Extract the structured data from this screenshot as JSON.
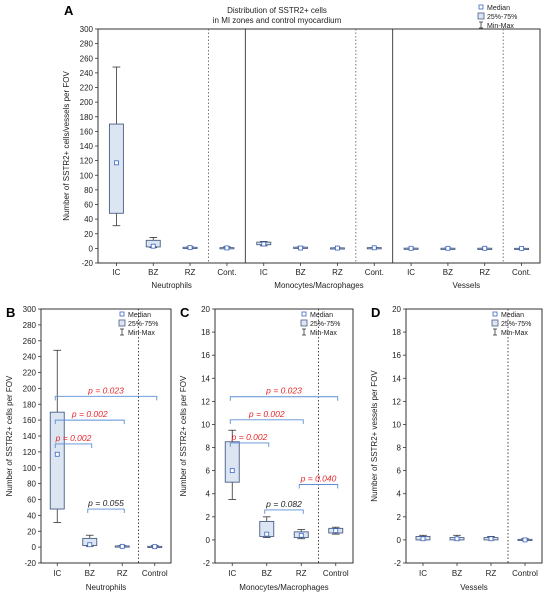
{
  "chart_data": [
    {
      "panel": "A",
      "type": "box",
      "title": "Distribution of SSTR2+ cells\nin MI zones and control myocardium",
      "ylabel": "Number of SSTR2+ cells/vessels per FOV",
      "ylim": [
        -20,
        300
      ],
      "yticks": [
        -20,
        0,
        20,
        40,
        60,
        80,
        100,
        120,
        140,
        160,
        180,
        200,
        220,
        240,
        260,
        280,
        300
      ],
      "legend": [
        "Median",
        "25%-75%",
        "Min-Max"
      ],
      "groups": [
        {
          "name": "Neutrophils",
          "categories": [
            "IC",
            "BZ",
            "RZ",
            "Cont."
          ],
          "boxes": [
            {
              "min": 31,
              "q1": 48,
              "median": 117,
              "q3": 170,
              "max": 248
            },
            {
              "min": 1,
              "q1": 2,
              "median": 3,
              "q3": 11,
              "max": 15
            },
            {
              "min": 0,
              "q1": 0,
              "median": 1,
              "q3": 1.5,
              "max": 2
            },
            {
              "min": 0,
              "q1": 0.2,
              "median": 0.6,
              "q3": 1,
              "max": 2
            }
          ]
        },
        {
          "name": "Monocytes/Macrophages",
          "categories": [
            "IC",
            "BZ",
            "RZ",
            "Cont."
          ],
          "boxes": [
            {
              "min": 3.5,
              "q1": 5,
              "median": 6,
              "q3": 8.5,
              "max": 9.5
            },
            {
              "min": 0.2,
              "q1": 0.3,
              "median": 0.5,
              "q3": 1.6,
              "max": 2
            },
            {
              "min": 0.1,
              "q1": 0.2,
              "median": 0.4,
              "q3": 0.7,
              "max": 0.9
            },
            {
              "min": 0.5,
              "q1": 0.6,
              "median": 0.8,
              "q3": 1.0,
              "max": 1.1
            }
          ]
        },
        {
          "name": "Vessels",
          "categories": [
            "IC",
            "BZ",
            "RZ",
            "Cont."
          ],
          "boxes": [
            {
              "min": 0,
              "q1": 0,
              "median": 0.1,
              "q3": 0.3,
              "max": 0.4
            },
            {
              "min": 0,
              "q1": 0,
              "median": 0.1,
              "q3": 0.2,
              "max": 0.4
            },
            {
              "min": 0,
              "q1": 0,
              "median": 0.1,
              "q3": 0.2,
              "max": 0.3
            },
            {
              "min": 0,
              "q1": 0,
              "median": 0,
              "q3": 0.05,
              "max": 0.1
            }
          ]
        }
      ]
    },
    {
      "panel": "B",
      "type": "box",
      "ylabel": "Number of SSTR2+ cells per FOV",
      "xlabel": "Neutrophils",
      "ylim": [
        -20,
        300
      ],
      "yticks": [
        -20,
        0,
        20,
        40,
        60,
        80,
        100,
        120,
        140,
        160,
        180,
        200,
        220,
        240,
        260,
        280,
        300
      ],
      "categories": [
        "IC",
        "BZ",
        "RZ",
        "Control"
      ],
      "legend": [
        "Median",
        "25%-75%",
        "Min-Max"
      ],
      "boxes": [
        {
          "min": 31,
          "q1": 48,
          "median": 117,
          "q3": 170,
          "max": 248
        },
        {
          "min": 1,
          "q1": 2,
          "median": 3,
          "q3": 11,
          "max": 15
        },
        {
          "min": 0,
          "q1": 0,
          "median": 1,
          "q3": 1.5,
          "max": 2
        },
        {
          "min": 0,
          "q1": 0.2,
          "median": 0.6,
          "q3": 1,
          "max": 2
        }
      ],
      "annotations": [
        {
          "from": "IC",
          "to": "Control",
          "y": 190,
          "text": "p = 0.023",
          "color": "#e8262a"
        },
        {
          "from": "IC",
          "to": "RZ",
          "y": 160,
          "text": "p = 0.002",
          "color": "#e8262a"
        },
        {
          "from": "IC",
          "to": "BZ",
          "y": 130,
          "text": "p = 0.002",
          "color": "#e8262a"
        },
        {
          "from": "BZ",
          "to": "RZ",
          "y": 48,
          "text": "p = 0.055",
          "color": "#222222"
        }
      ]
    },
    {
      "panel": "C",
      "type": "box",
      "ylabel": "Number of SSTR2+ cells per FOV",
      "xlabel": "Monocytes/Macrophages",
      "ylim": [
        -2,
        20
      ],
      "yticks": [
        -2,
        0,
        2,
        4,
        6,
        8,
        10,
        12,
        14,
        16,
        18,
        20
      ],
      "categories": [
        "IC",
        "BZ",
        "RZ",
        "Control"
      ],
      "legend": [
        "Median",
        "25%-75%",
        "Min-Max"
      ],
      "boxes": [
        {
          "min": 3.5,
          "q1": 5,
          "median": 6,
          "q3": 8.5,
          "max": 9.5
        },
        {
          "min": 0.2,
          "q1": 0.3,
          "median": 0.5,
          "q3": 1.6,
          "max": 2
        },
        {
          "min": 0.1,
          "q1": 0.2,
          "median": 0.4,
          "q3": 0.7,
          "max": 0.9
        },
        {
          "min": 0.5,
          "q1": 0.6,
          "median": 0.8,
          "q3": 1.0,
          "max": 1.1
        }
      ],
      "annotations": [
        {
          "from": "IC",
          "to": "Control",
          "y": 12.4,
          "text": "p = 0.023",
          "color": "#e8262a"
        },
        {
          "from": "IC",
          "to": "RZ",
          "y": 10.4,
          "text": "p = 0.002",
          "color": "#e8262a"
        },
        {
          "from": "IC",
          "to": "BZ",
          "y": 8.4,
          "text": "p = 0.002",
          "color": "#e8262a"
        },
        {
          "from": "RZ",
          "to": "Control",
          "y": 4.8,
          "text": "p = 0.040",
          "color": "#e8262a"
        },
        {
          "from": "BZ",
          "to": "RZ",
          "y": 2.6,
          "text": "p = 0.082",
          "color": "#222222"
        }
      ]
    },
    {
      "panel": "D",
      "type": "box",
      "ylabel": "Number of SSTR2+ vessels per FOV",
      "xlabel": "Vessels",
      "ylim": [
        -2,
        20
      ],
      "yticks": [
        -2,
        0,
        2,
        4,
        6,
        8,
        10,
        12,
        14,
        16,
        18,
        20
      ],
      "categories": [
        "IC",
        "BZ",
        "RZ",
        "Control"
      ],
      "legend": [
        "Median",
        "25%-75%",
        "Min-Max"
      ],
      "boxes": [
        {
          "min": 0,
          "q1": 0,
          "median": 0.1,
          "q3": 0.3,
          "max": 0.4
        },
        {
          "min": 0,
          "q1": 0,
          "median": 0.1,
          "q3": 0.2,
          "max": 0.4
        },
        {
          "min": 0,
          "q1": 0,
          "median": 0.1,
          "q3": 0.2,
          "max": 0.3
        },
        {
          "min": 0,
          "q1": 0,
          "median": 0,
          "q3": 0.05,
          "max": 0.1
        }
      ],
      "annotations": []
    }
  ],
  "colors": {
    "box_fill": "#dce6f2",
    "box_stroke": "#4a5e86",
    "median": "#3a64c4",
    "bracket": "#5b8fd6",
    "sig": "#e8262a",
    "axis": "#333333"
  }
}
